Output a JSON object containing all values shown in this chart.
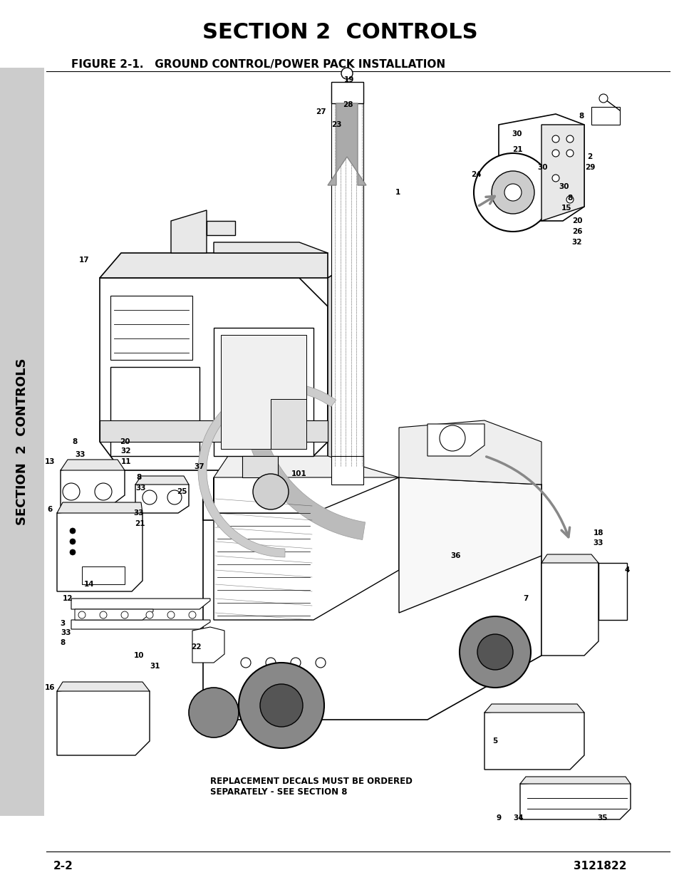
{
  "title": "SECTION 2  CONTROLS",
  "figure_title": "FIGURE 2-1.   GROUND CONTROL/POWER PACK INSTALLATION",
  "page_left": "2-2",
  "page_right": "3121822",
  "disclaimer": "REPLACEMENT DECALS MUST BE ORDERED\nSEPARATELY - SEE SECTION 8",
  "bg_color": "#ffffff",
  "sidebar_bg": "#cccccc",
  "figsize": [
    9.54,
    12.35
  ],
  "dpi": 100
}
